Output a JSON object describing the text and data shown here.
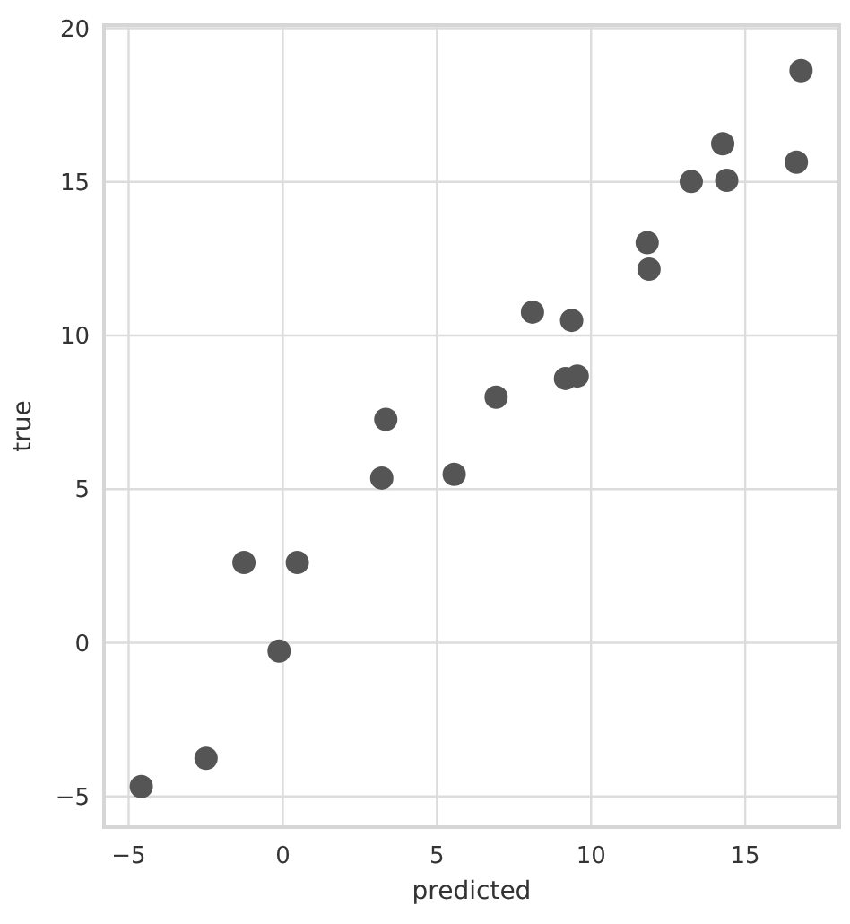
{
  "chart_data": {
    "type": "scatter",
    "xlabel": "predicted",
    "ylabel": "true",
    "x": [
      16.81,
      14.27,
      16.66,
      13.25,
      14.4,
      11.82,
      11.88,
      8.1,
      9.37,
      9.17,
      9.55,
      6.92,
      3.34,
      3.21,
      5.56,
      -1.26,
      0.47,
      -0.12,
      -2.49,
      -4.59
    ],
    "values": [
      18.62,
      16.24,
      15.64,
      15.01,
      15.05,
      13.02,
      12.16,
      10.76,
      10.49,
      8.6,
      8.68,
      7.99,
      7.27,
      5.36,
      5.48,
      2.61,
      2.61,
      -0.27,
      -3.76,
      -4.68
    ],
    "color": "#555555",
    "marker": "circle",
    "grid": true,
    "xlim": [
      -5.8,
      18.05
    ],
    "xticks": [
      {
        "value": -5,
        "label": "−5"
      },
      0,
      5,
      10,
      15
    ],
    "ylim": [
      -6,
      20.1
    ],
    "yticks": [
      {
        "value": -5,
        "label": "−5"
      },
      0,
      5,
      10,
      15,
      20
    ]
  }
}
